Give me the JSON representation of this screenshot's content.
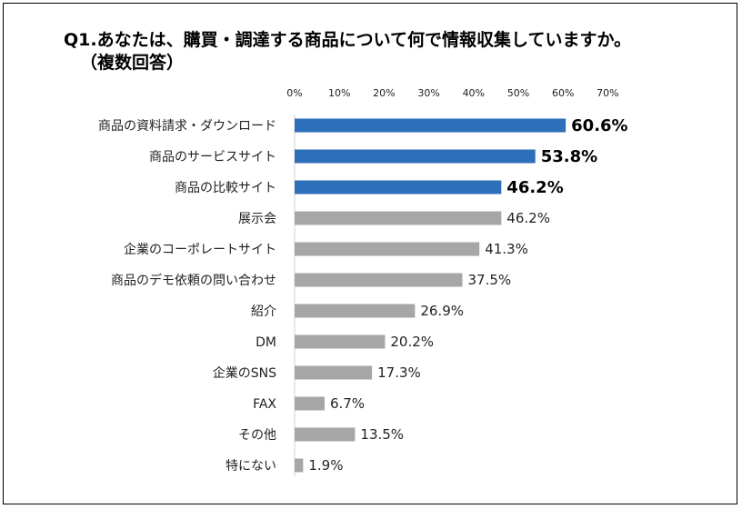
{
  "chart_data": {
    "type": "bar",
    "orientation": "horizontal",
    "title_line1": "Q1.あなたは、購買・調達する商品について何で情報収集していますか。",
    "title_line2": "（複数回答）",
    "xlim": [
      0,
      70
    ],
    "tick_labels": [
      "0%",
      "10%",
      "20%",
      "30%",
      "40%",
      "50%",
      "60%",
      "70%"
    ],
    "tick_values": [
      0,
      10,
      20,
      30,
      40,
      50,
      60,
      70
    ],
    "categories": [
      "商品の資料請求・ダウンロード",
      "商品のサービスサイト",
      "商品の比較サイト",
      "展示会",
      "企業のコーポレートサイト",
      "商品のデモ依頼の問い合わせ",
      "紹介",
      "DM",
      "企業のSNS",
      "FAX",
      "その他",
      "特にない"
    ],
    "values": [
      60.6,
      53.8,
      46.2,
      46.2,
      41.3,
      37.5,
      26.9,
      20.2,
      17.3,
      6.7,
      13.5,
      1.9
    ],
    "value_labels": [
      "60.6%",
      "53.8%",
      "46.2%",
      "46.2%",
      "41.3%",
      "37.5%",
      "26.9%",
      "20.2%",
      "17.3%",
      "6.7%",
      "13.5%",
      "1.9%"
    ],
    "highlighted": [
      true,
      true,
      true,
      false,
      false,
      false,
      false,
      false,
      false,
      false,
      false,
      false
    ],
    "colors": {
      "highlight": "#2e6fba",
      "normal": "#a6a6a6"
    },
    "grid": false,
    "legend": "none"
  }
}
